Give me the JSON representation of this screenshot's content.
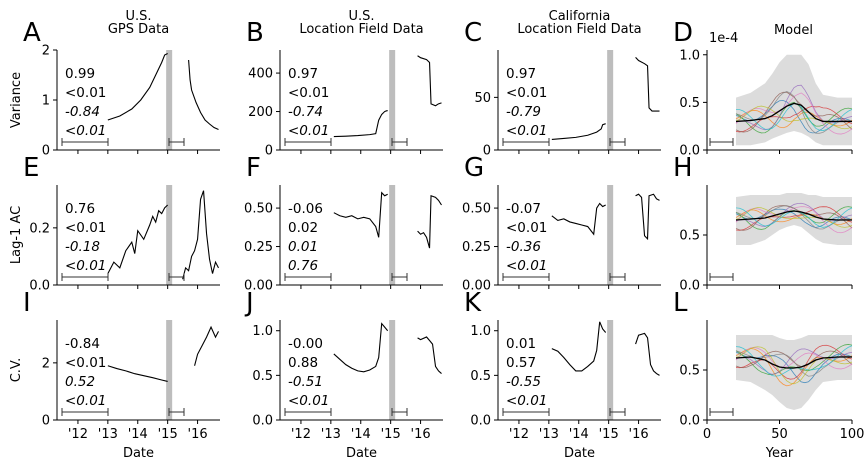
{
  "figure": {
    "ylabels": [
      "Variance",
      "Lag-1 AC",
      "C.V."
    ],
    "date_xlabel": "Date",
    "model_xlabel": "Year",
    "date_ticks": [
      "'12",
      "'13",
      "'14",
      "'15",
      "'16"
    ],
    "model_ticks": [
      "0",
      "50",
      "100"
    ]
  },
  "colors": {
    "line": "#000000",
    "shade": "#dcdcdc",
    "vbar": "#bdbdbd",
    "model_series": [
      "#1f77b4",
      "#ff7f0e",
      "#2ca02c",
      "#d62728",
      "#9467bd",
      "#8c564b",
      "#e377c2",
      "#7f7f7f",
      "#bcbd22",
      "#17becf"
    ]
  },
  "chart_data": [
    {
      "type": "line",
      "letter": "A",
      "title": [
        "U.S.",
        "GPS Data"
      ],
      "ylim": [
        0,
        2
      ],
      "yticks": [
        "0",
        "1",
        "2"
      ],
      "stats": [
        "0.99",
        "<0.01",
        "-0.84",
        "<0.01"
      ],
      "xrange": [
        2011.3,
        2016.75
      ],
      "vline": 2015.05,
      "segments": [
        {
          "x": [
            2013.0,
            2013.4,
            2013.8,
            2014.1,
            2014.4,
            2014.6,
            2014.8,
            2014.9,
            2015.0
          ],
          "y": [
            0.6,
            0.68,
            0.82,
            1.0,
            1.25,
            1.5,
            1.75,
            1.9,
            1.93
          ]
        },
        {
          "x": [
            2015.7,
            2015.75,
            2015.8,
            2015.95,
            2016.1,
            2016.25,
            2016.4,
            2016.55,
            2016.7
          ],
          "y": [
            1.8,
            1.4,
            1.2,
            0.95,
            0.75,
            0.6,
            0.52,
            0.45,
            0.41
          ]
        }
      ]
    },
    {
      "type": "line",
      "letter": "B",
      "title": [
        "U.S.",
        "Location Field Data"
      ],
      "ylim": [
        0,
        520
      ],
      "yticks": [
        "0",
        "200",
        "400"
      ],
      "stats": [
        "0.97",
        "<0.01",
        "-0.74",
        "<0.01"
      ],
      "xrange": [
        2011.3,
        2016.75
      ],
      "vline": 2015.05,
      "segments": [
        {
          "x": [
            2013.1,
            2013.5,
            2013.9,
            2014.3,
            2014.5,
            2014.55,
            2014.6,
            2014.7,
            2014.8,
            2014.85,
            2014.9
          ],
          "y": [
            70,
            72,
            75,
            80,
            85,
            120,
            155,
            185,
            200,
            203,
            205
          ]
        },
        {
          "x": [
            2015.9,
            2016.0,
            2016.2,
            2016.3,
            2016.35,
            2016.5,
            2016.6,
            2016.7
          ],
          "y": [
            490,
            480,
            470,
            455,
            240,
            230,
            240,
            245
          ]
        }
      ]
    },
    {
      "type": "line",
      "letter": "C",
      "title": [
        "California",
        "Location Field Data"
      ],
      "ylim": [
        0,
        95
      ],
      "yticks": [
        "0",
        "50"
      ],
      "stats": [
        "0.97",
        "<0.01",
        "-0.79",
        "<0.01"
      ],
      "xrange": [
        2011.3,
        2016.75
      ],
      "vline": 2015.05,
      "segments": [
        {
          "x": [
            2013.1,
            2013.5,
            2013.9,
            2014.3,
            2014.6,
            2014.75,
            2014.8,
            2014.9
          ],
          "y": [
            10,
            11,
            12,
            14,
            17,
            20,
            24,
            25
          ]
        },
        {
          "x": [
            2015.9,
            2016.0,
            2016.2,
            2016.3,
            2016.35,
            2016.45,
            2016.55,
            2016.7
          ],
          "y": [
            88,
            85,
            82,
            80,
            40,
            37,
            37,
            37
          ]
        }
      ]
    },
    {
      "type": "line",
      "letter": "E",
      "ylim": [
        0,
        0.35
      ],
      "yticks": [
        "0.0",
        "0.2"
      ],
      "stats": [
        "0.76",
        "<0.01",
        "-0.18",
        "<0.01"
      ],
      "xrange": [
        2011.3,
        2016.75
      ],
      "vline": 2015.05,
      "segments": [
        {
          "x": [
            2013.0,
            2013.2,
            2013.4,
            2013.6,
            2013.8,
            2013.9,
            2014.0,
            2014.2,
            2014.4,
            2014.5,
            2014.6,
            2014.7,
            2014.8,
            2014.9,
            2015.0
          ],
          "y": [
            0.04,
            0.08,
            0.06,
            0.12,
            0.15,
            0.11,
            0.19,
            0.16,
            0.21,
            0.24,
            0.22,
            0.26,
            0.25,
            0.27,
            0.28
          ]
        },
        {
          "x": [
            2015.5,
            2015.6,
            2015.7,
            2015.8,
            2015.9,
            2016.0,
            2016.1,
            2016.2,
            2016.3,
            2016.4,
            2016.5,
            2016.6,
            2016.7
          ],
          "y": [
            0.02,
            0.06,
            0.05,
            0.1,
            0.12,
            0.16,
            0.3,
            0.33,
            0.18,
            0.09,
            0.04,
            0.08,
            0.06
          ]
        }
      ]
    },
    {
      "type": "line",
      "letter": "F",
      "ylim": [
        0,
        0.65
      ],
      "yticks": [
        "0.00",
        "0.25",
        "0.50"
      ],
      "stats": [
        "-0.06",
        "0.02",
        "0.01",
        "0.76"
      ],
      "stats_italic": [
        false,
        false,
        true,
        true
      ],
      "xrange": [
        2011.3,
        2016.75
      ],
      "vline": 2015.05,
      "segments": [
        {
          "x": [
            2013.1,
            2013.3,
            2013.5,
            2013.7,
            2013.9,
            2014.1,
            2014.3,
            2014.5,
            2014.6,
            2014.7,
            2014.8,
            2014.9
          ],
          "y": [
            0.47,
            0.45,
            0.44,
            0.45,
            0.43,
            0.44,
            0.43,
            0.38,
            0.31,
            0.6,
            0.58,
            0.59
          ]
        },
        {
          "x": [
            2015.9,
            2016.0,
            2016.1,
            2016.2,
            2016.3,
            2016.35,
            2016.5,
            2016.6,
            2016.7
          ],
          "y": [
            0.35,
            0.33,
            0.34,
            0.31,
            0.24,
            0.58,
            0.57,
            0.55,
            0.52
          ]
        }
      ]
    },
    {
      "type": "line",
      "letter": "G",
      "ylim": [
        0,
        0.65
      ],
      "yticks": [
        "0.00",
        "0.25",
        "0.50"
      ],
      "stats": [
        "-0.07",
        "<0.01",
        "-0.36",
        "<0.01"
      ],
      "xrange": [
        2011.3,
        2016.75
      ],
      "vline": 2015.05,
      "segments": [
        {
          "x": [
            2013.1,
            2013.3,
            2013.5,
            2013.7,
            2013.9,
            2014.1,
            2014.3,
            2014.5,
            2014.6,
            2014.7,
            2014.8,
            2014.9
          ],
          "y": [
            0.45,
            0.42,
            0.43,
            0.41,
            0.4,
            0.39,
            0.38,
            0.33,
            0.5,
            0.53,
            0.51,
            0.52
          ]
        },
        {
          "x": [
            2015.9,
            2016.0,
            2016.1,
            2016.2,
            2016.3,
            2016.35,
            2016.5,
            2016.6,
            2016.7
          ],
          "y": [
            0.58,
            0.59,
            0.57,
            0.32,
            0.3,
            0.58,
            0.59,
            0.56,
            0.55
          ]
        }
      ]
    },
    {
      "type": "line",
      "letter": "I",
      "ylim": [
        0,
        3.5
      ],
      "yticks": [
        "0",
        "2"
      ],
      "stats": [
        "-0.84",
        "<0.01",
        "0.52",
        "<0.01"
      ],
      "xrange": [
        2011.3,
        2016.75
      ],
      "vline": 2015.05,
      "segments": [
        {
          "x": [
            2013.0,
            2013.3,
            2013.6,
            2013.9,
            2014.2,
            2014.5,
            2014.8,
            2015.0
          ],
          "y": [
            1.9,
            1.8,
            1.72,
            1.62,
            1.55,
            1.48,
            1.4,
            1.35
          ]
        },
        {
          "x": [
            2015.9,
            2016.0,
            2016.15,
            2016.3,
            2016.45,
            2016.6,
            2016.7
          ],
          "y": [
            1.9,
            2.3,
            2.6,
            2.9,
            3.25,
            2.9,
            3.1
          ]
        }
      ]
    },
    {
      "type": "line",
      "letter": "J",
      "ylim": [
        0,
        1.12
      ],
      "yticks": [
        "0.0",
        "0.5",
        "1.0"
      ],
      "stats": [
        "-0.00",
        "0.88",
        "-0.51",
        "<0.01"
      ],
      "xrange": [
        2011.3,
        2016.75
      ],
      "vline": 2015.05,
      "segments": [
        {
          "x": [
            2013.1,
            2013.3,
            2013.5,
            2013.7,
            2013.9,
            2014.1,
            2014.3,
            2014.5,
            2014.6,
            2014.7,
            2014.8,
            2014.9
          ],
          "y": [
            0.74,
            0.68,
            0.62,
            0.58,
            0.55,
            0.54,
            0.56,
            0.6,
            0.7,
            1.08,
            1.04,
            1.0
          ]
        },
        {
          "x": [
            2015.9,
            2016.0,
            2016.2,
            2016.3,
            2016.4,
            2016.5,
            2016.6,
            2016.7
          ],
          "y": [
            0.92,
            0.9,
            0.93,
            0.89,
            0.85,
            0.6,
            0.55,
            0.52
          ]
        }
      ]
    },
    {
      "type": "line",
      "letter": "K",
      "ylim": [
        0,
        1.12
      ],
      "yticks": [
        "0.0",
        "0.5",
        "1.0"
      ],
      "stats": [
        "0.01",
        "0.57",
        "-0.55",
        "<0.01"
      ],
      "stats_italic": [
        false,
        false,
        true,
        true
      ],
      "xrange": [
        2011.3,
        2016.75
      ],
      "vline": 2015.05,
      "segments": [
        {
          "x": [
            2013.1,
            2013.3,
            2013.5,
            2013.7,
            2013.9,
            2014.1,
            2014.3,
            2014.5,
            2014.6,
            2014.7,
            2014.8,
            2014.9
          ],
          "y": [
            0.8,
            0.77,
            0.7,
            0.62,
            0.55,
            0.55,
            0.6,
            0.66,
            0.78,
            1.1,
            1.02,
            0.98
          ]
        },
        {
          "x": [
            2015.9,
            2016.0,
            2016.2,
            2016.3,
            2016.4,
            2016.5,
            2016.6,
            2016.7
          ],
          "y": [
            0.85,
            0.95,
            0.97,
            0.92,
            0.62,
            0.55,
            0.52,
            0.5
          ]
        }
      ]
    },
    {
      "type": "line",
      "letter": "D",
      "title": [
        "Model"
      ],
      "sci": "1e-4",
      "ylim": [
        0,
        1.05
      ],
      "yticks": [
        "0.0",
        "0.5",
        "1.0"
      ],
      "xrange": [
        0,
        100
      ],
      "model": true,
      "mean": {
        "x": [
          20,
          30,
          40,
          45,
          50,
          55,
          60,
          65,
          70,
          75,
          80,
          90,
          100
        ],
        "y": [
          0.3,
          0.31,
          0.33,
          0.36,
          0.41,
          0.46,
          0.49,
          0.47,
          0.4,
          0.33,
          0.3,
          0.3,
          0.3
        ]
      },
      "band": {
        "x": [
          20,
          30,
          40,
          45,
          50,
          55,
          60,
          65,
          70,
          75,
          80,
          90,
          100
        ],
        "lo": [
          0.05,
          0.05,
          0.08,
          0.12,
          0.15,
          0.18,
          0.2,
          0.18,
          0.14,
          0.08,
          0.05,
          0.05,
          0.05
        ],
        "hi": [
          0.55,
          0.6,
          0.7,
          0.8,
          0.92,
          1.0,
          1.0,
          1.0,
          0.9,
          0.7,
          0.58,
          0.55,
          0.55
        ]
      }
    },
    {
      "type": "line",
      "letter": "H",
      "ylim": [
        0,
        1.0
      ],
      "yticks": [
        "0.0",
        "0.5"
      ],
      "xrange": [
        0,
        100
      ],
      "model": true,
      "mean": {
        "x": [
          20,
          30,
          40,
          45,
          50,
          55,
          60,
          65,
          70,
          75,
          80,
          90,
          100
        ],
        "y": [
          0.65,
          0.66,
          0.67,
          0.69,
          0.71,
          0.73,
          0.74,
          0.73,
          0.71,
          0.68,
          0.66,
          0.65,
          0.65
        ]
      },
      "band": {
        "x": [
          20,
          30,
          40,
          45,
          50,
          55,
          60,
          65,
          70,
          75,
          80,
          90,
          100
        ],
        "lo": [
          0.4,
          0.4,
          0.45,
          0.5,
          0.55,
          0.58,
          0.6,
          0.58,
          0.52,
          0.46,
          0.42,
          0.4,
          0.4
        ],
        "hi": [
          0.88,
          0.9,
          0.9,
          0.9,
          0.9,
          0.92,
          0.92,
          0.92,
          0.9,
          0.9,
          0.88,
          0.88,
          0.88
        ]
      }
    },
    {
      "type": "line",
      "letter": "L",
      "ylim": [
        0,
        1.0
      ],
      "yticks": [
        "0.0",
        "0.5"
      ],
      "xrange": [
        0,
        100
      ],
      "model": true,
      "mean": {
        "x": [
          20,
          30,
          40,
          45,
          50,
          55,
          60,
          65,
          70,
          75,
          80,
          90,
          100
        ],
        "y": [
          0.62,
          0.63,
          0.6,
          0.56,
          0.53,
          0.52,
          0.52,
          0.53,
          0.56,
          0.6,
          0.62,
          0.63,
          0.63
        ]
      },
      "band": {
        "x": [
          20,
          30,
          40,
          45,
          50,
          55,
          60,
          65,
          70,
          75,
          80,
          90,
          100
        ],
        "lo": [
          0.4,
          0.38,
          0.3,
          0.25,
          0.18,
          0.12,
          0.1,
          0.12,
          0.2,
          0.3,
          0.38,
          0.4,
          0.4
        ],
        "hi": [
          0.85,
          0.85,
          0.85,
          0.85,
          0.82,
          0.8,
          0.8,
          0.82,
          0.85,
          0.85,
          0.85,
          0.85,
          0.85
        ]
      }
    }
  ]
}
